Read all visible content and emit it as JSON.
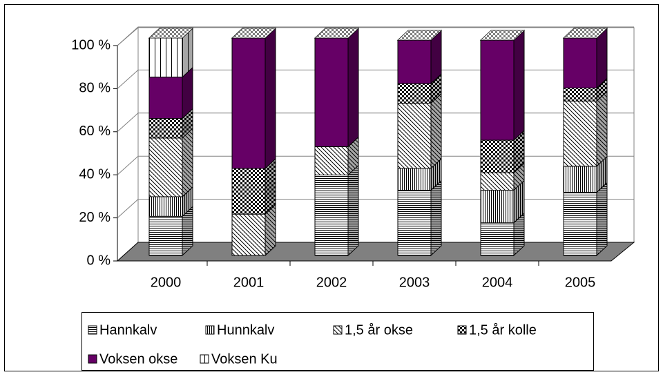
{
  "chart_data": {
    "type": "bar3d_stacked",
    "categories": [
      "2000",
      "2001",
      "2002",
      "2003",
      "2004",
      "2005"
    ],
    "series": [
      {
        "name": "Hannkalv",
        "color": "#ffffff",
        "values": [
          18,
          0,
          37,
          30,
          15,
          29
        ]
      },
      {
        "name": "Hunnkalv",
        "color": "#ffffff",
        "values": [
          9,
          0,
          0,
          10,
          15,
          12
        ]
      },
      {
        "name": "1,5 år okse",
        "color": "#ffffff",
        "values": [
          27,
          19,
          13,
          30,
          8,
          30
        ]
      },
      {
        "name": "1,5 år kolle",
        "color": "#ffffff",
        "values": [
          9,
          21,
          0,
          9,
          15,
          6
        ]
      },
      {
        "name": "Voksen okse",
        "color": "#660066",
        "values": [
          19,
          60,
          50,
          20,
          46,
          23
        ]
      },
      {
        "name": "Voksen Ku",
        "color": "#ffffff",
        "values": [
          18,
          0,
          0,
          0,
          0,
          0
        ]
      }
    ],
    "ylim": [
      0,
      100
    ],
    "yticks": [
      {
        "value": 0,
        "label": "0 %"
      },
      {
        "value": 20,
        "label": "20 %"
      },
      {
        "value": 40,
        "label": "40 %"
      },
      {
        "value": 60,
        "label": "60 %"
      },
      {
        "value": 80,
        "label": "80 %"
      },
      {
        "value": 100,
        "label": "100 %"
      }
    ],
    "grid": true
  }
}
